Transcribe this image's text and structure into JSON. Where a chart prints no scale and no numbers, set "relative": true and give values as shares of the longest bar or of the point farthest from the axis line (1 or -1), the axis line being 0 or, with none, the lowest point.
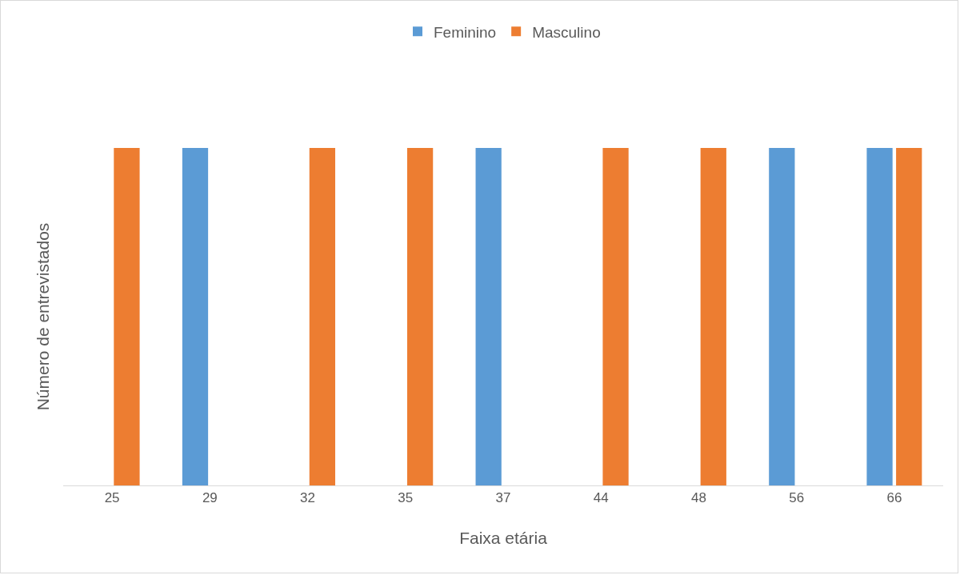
{
  "chart_data": {
    "type": "bar",
    "relative": true,
    "xlabel": "Faixa etária",
    "ylabel": "Número de entrevistados",
    "categories": [
      "25",
      "29",
      "32",
      "35",
      "37",
      "44",
      "48",
      "56",
      "66"
    ],
    "series": [
      {
        "name": "Feminino",
        "color": "#5b9bd5",
        "values": [
          null,
          1,
          null,
          null,
          1,
          null,
          null,
          1,
          1
        ]
      },
      {
        "name": "Masculino",
        "color": "#ed7d31",
        "values": [
          1,
          null,
          1,
          1,
          null,
          1,
          1,
          null,
          1
        ]
      }
    ],
    "legend": "top",
    "grid": false
  }
}
